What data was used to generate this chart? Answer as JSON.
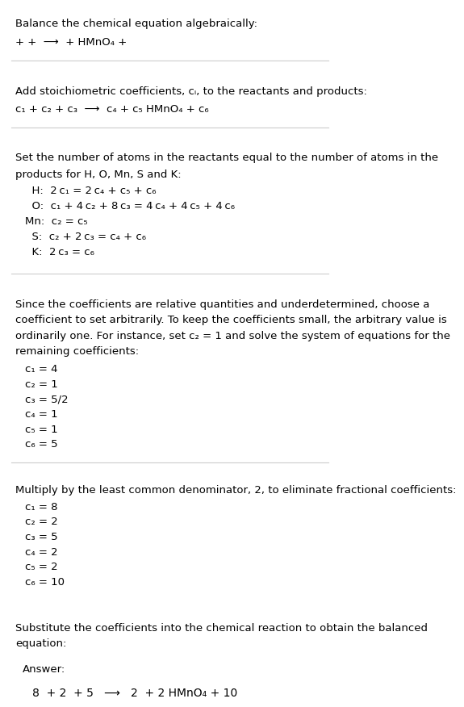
{
  "title": "Balance the chemical equation algebraically:",
  "section1_line": "+ +  ⟶  + HMnO₄ +",
  "section2_header": "Add stoichiometric coefficients, cᵢ, to the reactants and products:",
  "section2_line": "c₁ + c₂ + c₃  ⟶  c₄ + c₅ HMnO₄ + c₆",
  "section3_header": "Set the number of atoms in the reactants equal to the number of atoms in the\nproducts for H, O, Mn, S and K:",
  "section3_equations": [
    "  H:  2 c₁ = 2 c₄ + c₅ + c₆",
    "  O:  c₁ + 4 c₂ + 8 c₃ = 4 c₄ + 4 c₅ + 4 c₆",
    "Mn:  c₂ = c₅",
    "  S:  c₂ + 2 c₃ = c₄ + c₆",
    "  K:  2 c₃ = c₆"
  ],
  "section4_header": "Since the coefficients are relative quantities and underdetermined, choose a\ncoefficient to set arbitrarily. To keep the coefficients small, the arbitrary value is\nordinarily one. For instance, set c₂ = 1 and solve the system of equations for the\nremaining coefficients:",
  "section4_values": [
    "c₁ = 4",
    "c₂ = 1",
    "c₃ = 5/2",
    "c₄ = 1",
    "c₅ = 1",
    "c₆ = 5"
  ],
  "section5_header": "Multiply by the least common denominator, 2, to eliminate fractional coefficients:",
  "section5_values": [
    "c₁ = 8",
    "c₂ = 2",
    "c₃ = 5",
    "c₄ = 2",
    "c₅ = 2",
    "c₆ = 10"
  ],
  "section6_header": "Substitute the coefficients into the chemical reaction to obtain the balanced\nequation:",
  "answer_label": "Answer:",
  "answer_line": "8  + 2  + 5   ⟶   2  + 2 HMnO₄ + 10",
  "bg_color": "#ffffff",
  "text_color": "#000000",
  "answer_box_color": "#e8f4f8",
  "answer_box_border": "#87ceeb",
  "separator_color": "#cccccc"
}
